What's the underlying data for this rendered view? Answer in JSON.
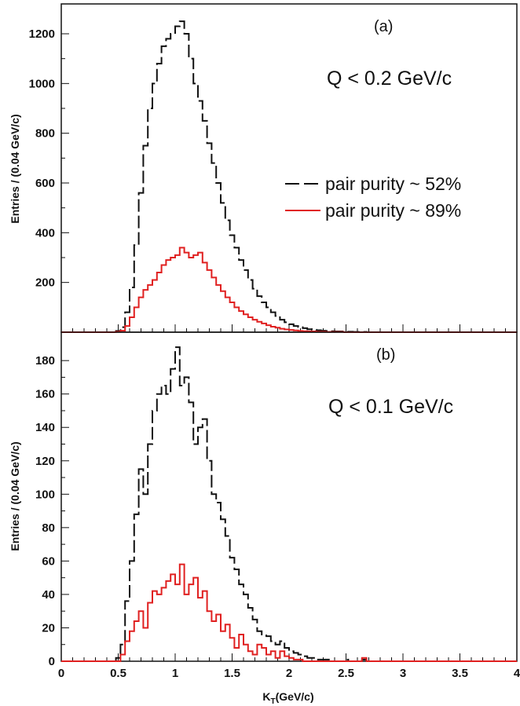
{
  "chart_data": [
    {
      "type": "histogram",
      "panel_label": "(a)",
      "annotation": "Q <  0.2 GeV/c",
      "ylabel": "Entries / (0.04 GeV/c)",
      "xlabel": "",
      "xlim": [
        0,
        4
      ],
      "ylim": [
        0,
        1320
      ],
      "y_ticks": [
        200,
        400,
        600,
        800,
        1000,
        1200
      ],
      "bin_width": 0.04,
      "x_start": 0.48,
      "legend": [
        "pair purity ~ 52%",
        "pair purity ~ 89%"
      ],
      "series": [
        {
          "name": "pair purity ~ 52%",
          "color": "#111111",
          "style": "dashed",
          "values": [
            5,
            20,
            80,
            180,
            350,
            560,
            750,
            900,
            1000,
            1080,
            1150,
            1180,
            1200,
            1230,
            1250,
            1200,
            1100,
            1000,
            930,
            850,
            760,
            680,
            600,
            520,
            450,
            390,
            340,
            290,
            250,
            210,
            175,
            145,
            120,
            100,
            80,
            65,
            50,
            40,
            32,
            25,
            20,
            16,
            12,
            10,
            8,
            6,
            5,
            4,
            3,
            3,
            2,
            2,
            1,
            1,
            1
          ]
        },
        {
          "name": "pair purity ~ 89%",
          "color": "#e02020",
          "style": "solid",
          "values": [
            2,
            6,
            25,
            60,
            100,
            140,
            170,
            190,
            210,
            240,
            270,
            290,
            300,
            310,
            340,
            320,
            300,
            310,
            320,
            280,
            250,
            220,
            190,
            165,
            140,
            120,
            100,
            85,
            72,
            60,
            50,
            42,
            35,
            28,
            22,
            18,
            14,
            11,
            9,
            7,
            5,
            4,
            3,
            3,
            2,
            2,
            1,
            1,
            1,
            1
          ]
        }
      ]
    },
    {
      "type": "histogram",
      "panel_label": "(b)",
      "annotation": "Q <  0.1 GeV/c",
      "ylabel": "Entries / (0.04 GeV/c)",
      "xlabel": "K_T(GeV/c)",
      "xlim": [
        0,
        4
      ],
      "ylim": [
        0,
        197
      ],
      "x_ticks": [
        "0",
        "0.5",
        "1",
        "1.5",
        "2",
        "2.5",
        "3",
        "3.5",
        "4"
      ],
      "y_ticks": [
        0,
        20,
        40,
        60,
        80,
        100,
        120,
        140,
        160,
        180
      ],
      "bin_width": 0.04,
      "x_start": 0.48,
      "series": [
        {
          "name": "pair purity ~ 52%",
          "color": "#111111",
          "style": "dashed",
          "values": [
            2,
            10,
            36,
            60,
            88,
            115,
            100,
            130,
            150,
            160,
            165,
            160,
            175,
            188,
            165,
            170,
            155,
            130,
            140,
            145,
            120,
            100,
            95,
            85,
            75,
            62,
            55,
            46,
            40,
            32,
            25,
            18,
            16,
            15,
            12,
            10,
            12,
            8,
            6,
            5,
            4,
            3,
            2,
            2,
            1,
            1,
            1,
            0,
            0,
            0,
            1,
            0,
            0,
            0,
            1
          ]
        },
        {
          "name": "pair purity ~ 89%",
          "color": "#e02020",
          "style": "solid",
          "values": [
            0,
            4,
            12,
            18,
            24,
            30,
            20,
            35,
            42,
            40,
            44,
            48,
            52,
            46,
            58,
            40,
            46,
            50,
            38,
            42,
            30,
            24,
            28,
            18,
            22,
            14,
            8,
            16,
            10,
            6,
            4,
            10,
            8,
            4,
            6,
            2,
            6,
            3,
            2,
            1,
            1,
            0,
            0,
            0,
            0,
            0,
            0,
            0,
            0,
            0,
            0,
            0,
            0,
            0,
            2
          ]
        }
      ]
    }
  ]
}
